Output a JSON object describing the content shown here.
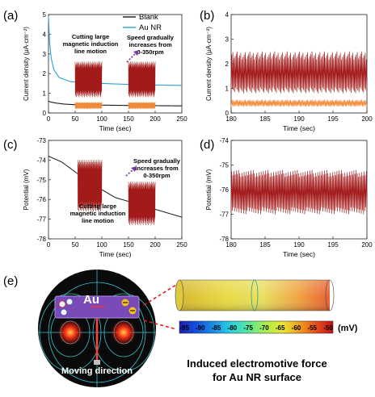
{
  "panel_labels": [
    "(a)",
    "(b)",
    "(c)",
    "(d)",
    "(e)"
  ],
  "colors": {
    "blank": "#1a1a1a",
    "au_nr": "#2a9fd8",
    "red_signal": "#a31a1a",
    "orange_signal": "#f08a3a",
    "arrow": "#7b3fa0"
  },
  "chart_data": [
    {
      "id": "a",
      "type": "line",
      "xlabel": "Time (sec)",
      "ylabel": "Current density (μA·cm⁻²)",
      "xlim": [
        0,
        250
      ],
      "ylim": [
        0,
        5
      ],
      "xticks": [
        0,
        50,
        100,
        150,
        200,
        250
      ],
      "yticks": [
        0,
        1,
        2,
        3,
        4,
        5
      ],
      "legend": {
        "placement": "top-right",
        "entries": [
          "Blank",
          "Au NR"
        ]
      },
      "series": [
        {
          "name": "Blank",
          "color": "#1a1a1a",
          "x": [
            0,
            5,
            15,
            30,
            50,
            100,
            150,
            200,
            250
          ],
          "y": [
            0.6,
            0.55,
            0.5,
            0.45,
            0.42,
            0.4,
            0.38,
            0.37,
            0.36
          ]
        },
        {
          "name": "Au NR",
          "color": "#2a9fd8",
          "x": [
            0,
            2,
            5,
            10,
            20,
            40,
            60,
            100,
            150,
            200,
            250
          ],
          "y": [
            4.9,
            3.6,
            2.8,
            2.2,
            1.8,
            1.6,
            1.55,
            1.5,
            1.45,
            1.42,
            1.4
          ]
        }
      ],
      "bursts": [
        {
          "x_range": [
            50,
            100
          ],
          "red_range": [
            0.8,
            2.6
          ],
          "orange_range": [
            0.2,
            0.55
          ]
        },
        {
          "x_range": [
            150,
            200
          ],
          "red_range": [
            0.8,
            2.6
          ],
          "orange_range": [
            0.2,
            0.55
          ]
        }
      ],
      "annotations": [
        {
          "text": [
            "Cutting large",
            "magnetic induction",
            "line motion"
          ],
          "x": 75,
          "y": 3.6
        },
        {
          "text": [
            "Speed gradually",
            "increases from",
            "0-350rpm"
          ],
          "x": 182,
          "y": 4.4
        }
      ]
    },
    {
      "id": "b",
      "type": "line",
      "xlabel": "Time (sec)",
      "ylabel": "Current density (μA·cm⁻²)",
      "xlim": [
        180,
        200
      ],
      "ylim": [
        0,
        4
      ],
      "xticks": [
        180,
        185,
        190,
        195,
        200
      ],
      "yticks": [
        0,
        1,
        2,
        3,
        4
      ],
      "oscillation": {
        "red_min": 0.8,
        "red_max": 2.5,
        "orange_min": 0.25,
        "orange_max": 0.55
      }
    },
    {
      "id": "c",
      "type": "line",
      "xlabel": "Time (sec)",
      "ylabel": "Potential (mV)",
      "xlim": [
        0,
        250
      ],
      "ylim": [
        -78,
        -73
      ],
      "xticks": [
        0,
        50,
        100,
        150,
        200,
        250
      ],
      "yticks": [
        -78,
        -77,
        -76,
        -75,
        -74,
        -73
      ],
      "series": [
        {
          "name": "",
          "color": "#1a1a1a",
          "x": [
            0,
            25,
            50,
            75,
            100,
            125,
            150,
            175,
            200,
            225,
            250
          ],
          "y": [
            -73.8,
            -74.1,
            -74.6,
            -75.1,
            -75.5,
            -75.9,
            -76.1,
            -76.3,
            -76.5,
            -76.7,
            -76.9
          ]
        }
      ],
      "bursts": [
        {
          "x_range": [
            55,
            100
          ],
          "min": -76.6,
          "max": -74.0
        },
        {
          "x_range": [
            150,
            200
          ],
          "min": -77.3,
          "max": -75.1
        }
      ],
      "annotations": [
        {
          "text": [
            "Cutting large",
            "magnetic induction",
            "line motion"
          ],
          "x": 100,
          "y": -76.7
        },
        {
          "text": [
            "Speed gradually",
            "increases from",
            "0-350rpm"
          ],
          "x": 200,
          "y": -74.2
        }
      ]
    },
    {
      "id": "d",
      "type": "line",
      "xlabel": "Time (sec)",
      "ylabel": "Potential (mV)",
      "xlim": [
        180,
        200
      ],
      "ylim": [
        -78,
        -74
      ],
      "xticks": [
        180,
        185,
        190,
        195,
        200
      ],
      "yticks": [
        -78,
        -77,
        -76,
        -75,
        -74
      ],
      "oscillation": {
        "min": -77.0,
        "max": -75.2
      }
    }
  ],
  "panel_e": {
    "au_label": "Au",
    "moving_direction": "Moving direction",
    "colorbar_unit": "(mV)",
    "colorbar_ticks": [
      "-95",
      "-90",
      "-85",
      "-80",
      "-75",
      "-70",
      "-65",
      "-60",
      "-55",
      "-50"
    ],
    "caption": [
      "Induced electromotive force",
      "for Au NR surface"
    ],
    "colorbar_colors": [
      "#1b1fb0",
      "#1450e0",
      "#1a8fe8",
      "#2ad0e0",
      "#55e6a0",
      "#a8ee50",
      "#e8e830",
      "#f0a020",
      "#e85018",
      "#c0101a"
    ]
  }
}
